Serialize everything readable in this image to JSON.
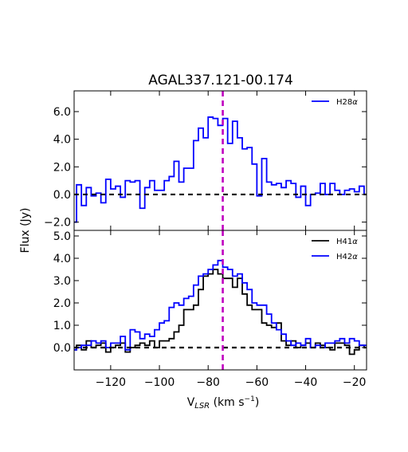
{
  "chart_data": {
    "type": "line",
    "title": "AGAL337.121-00.174",
    "xlabel": "V_LSR (km s^-1)",
    "xlabel_main": "V",
    "xlabel_sub": "LSR",
    "xlabel_unit_open": " (km s",
    "xlabel_unit_exp": "−1",
    "xlabel_unit_close": ")",
    "ylabel": "Flux (Jy)",
    "x_range": [
      -135,
      -15
    ],
    "x_ticks": [
      -120,
      -100,
      -80,
      -60,
      -40,
      -20
    ],
    "x_tick_labels": [
      "−120",
      "−100",
      "−80",
      "−60",
      "−40",
      "−20"
    ],
    "reference_velocity": -74,
    "reference_line_color": "#bf00bf",
    "panels": [
      {
        "id": "top",
        "y_range": [
          -2.6,
          7.5
        ],
        "y_ticks": [
          -2,
          0,
          2,
          4,
          6
        ],
        "y_tick_labels": [
          "−2.0",
          "0.0",
          "2.0",
          "4.0",
          "6.0"
        ],
        "baseline": 0,
        "legend_position": "top-right",
        "series": [
          {
            "name": "H28α",
            "legend": {
              "base": "H28",
              "greek": "α"
            },
            "color": "#0000ff",
            "x": [
              -135,
              -133,
              -131,
              -129,
              -127,
              -125,
              -123,
              -121,
              -119,
              -117,
              -115,
              -113,
              -111,
              -109,
              -107,
              -105,
              -103,
              -101,
              -99,
              -97,
              -95,
              -93,
              -91,
              -89,
              -87,
              -85,
              -83,
              -81,
              -79,
              -77,
              -75,
              -73,
              -71,
              -69,
              -67,
              -65,
              -63,
              -61,
              -59,
              -57,
              -55,
              -53,
              -51,
              -49,
              -47,
              -45,
              -43,
              -41,
              -39,
              -37,
              -35,
              -33,
              -31,
              -29,
              -27,
              -25,
              -23,
              -21,
              -19,
              -17,
              -15
            ],
            "values": [
              -2.0,
              0.7,
              -0.8,
              0.5,
              -0.1,
              0.1,
              -0.6,
              1.1,
              0.4,
              0.6,
              -0.2,
              1.0,
              0.9,
              1.0,
              -1.0,
              0.5,
              1.0,
              0.3,
              0.3,
              1.0,
              1.3,
              2.4,
              0.9,
              1.9,
              1.9,
              3.9,
              4.8,
              4.1,
              5.6,
              5.5,
              5.0,
              5.5,
              3.7,
              5.3,
              4.1,
              3.3,
              3.4,
              2.2,
              -0.1,
              2.6,
              0.9,
              0.7,
              0.8,
              0.5,
              1.0,
              0.8,
              -0.2,
              0.6,
              -0.8,
              0.0,
              0.1,
              0.8,
              0.0,
              0.8,
              0.3,
              0.0,
              0.3,
              0.4,
              0.2,
              0.6,
              0.0
            ]
          }
        ]
      },
      {
        "id": "bottom",
        "y_range": [
          -1.0,
          5.25
        ],
        "y_ticks": [
          0,
          1,
          2,
          3,
          4,
          5
        ],
        "y_tick_labels": [
          "0.0",
          "1.0",
          "2.0",
          "3.0",
          "4.0",
          "5.0"
        ],
        "baseline": 0,
        "legend_position": "top-right",
        "series": [
          {
            "name": "H41α",
            "legend": {
              "base": "H41",
              "greek": "α"
            },
            "color": "#000000",
            "x": [
              -135,
              -133,
              -131,
              -129,
              -127,
              -125,
              -123,
              -121,
              -119,
              -117,
              -115,
              -113,
              -111,
              -109,
              -107,
              -105,
              -103,
              -101,
              -99,
              -97,
              -95,
              -93,
              -91,
              -89,
              -87,
              -85,
              -83,
              -81,
              -79,
              -77,
              -75,
              -73,
              -71,
              -69,
              -67,
              -65,
              -63,
              -61,
              -59,
              -57,
              -55,
              -53,
              -51,
              -49,
              -47,
              -45,
              -43,
              -41,
              -39,
              -37,
              -35,
              -33,
              -31,
              -29,
              -27,
              -25,
              -23,
              -21,
              -19,
              -17,
              -15
            ],
            "values": [
              -0.1,
              0.1,
              -0.1,
              0.3,
              0.0,
              0.1,
              0.2,
              -0.2,
              0.0,
              0.1,
              0.2,
              -0.2,
              0.0,
              0.1,
              0.2,
              0.1,
              0.3,
              0.0,
              0.3,
              0.3,
              0.4,
              0.7,
              1.0,
              1.7,
              1.7,
              1.9,
              2.6,
              3.2,
              3.3,
              3.5,
              3.3,
              3.1,
              3.1,
              2.7,
              3.1,
              2.4,
              1.9,
              1.7,
              1.7,
              1.1,
              1.0,
              0.9,
              1.1,
              0.3,
              0.1,
              0.3,
              0.0,
              0.1,
              0.2,
              0.0,
              0.2,
              0.1,
              0.0,
              -0.1,
              0.2,
              0.2,
              0.1,
              -0.3,
              -0.1,
              0.1,
              0.0
            ]
          },
          {
            "name": "H42α",
            "legend": {
              "base": "H42",
              "greek": "α"
            },
            "color": "#0000ff",
            "x": [
              -135,
              -133,
              -131,
              -129,
              -127,
              -125,
              -123,
              -121,
              -119,
              -117,
              -115,
              -113,
              -111,
              -109,
              -107,
              -105,
              -103,
              -101,
              -99,
              -97,
              -95,
              -93,
              -91,
              -89,
              -87,
              -85,
              -83,
              -81,
              -79,
              -77,
              -75,
              -73,
              -71,
              -69,
              -67,
              -65,
              -63,
              -61,
              -59,
              -57,
              -55,
              -53,
              -51,
              -49,
              -47,
              -45,
              -43,
              -41,
              -39,
              -37,
              -35,
              -33,
              -31,
              -29,
              -27,
              -25,
              -23,
              -21,
              -19,
              -17,
              -15
            ],
            "values": [
              -0.1,
              0.0,
              0.1,
              0.1,
              0.3,
              0.2,
              0.3,
              0.0,
              0.2,
              0.2,
              0.5,
              -0.1,
              0.8,
              0.7,
              0.4,
              0.6,
              0.5,
              0.8,
              1.1,
              1.2,
              1.8,
              2.0,
              1.9,
              2.2,
              2.3,
              2.8,
              3.2,
              3.3,
              3.5,
              3.7,
              3.9,
              3.6,
              3.5,
              3.2,
              3.3,
              2.9,
              2.6,
              2.0,
              1.9,
              1.9,
              1.5,
              1.1,
              0.8,
              0.6,
              0.3,
              0.1,
              0.2,
              0.1,
              0.4,
              0.0,
              0.1,
              0.0,
              0.2,
              0.2,
              0.3,
              0.4,
              0.2,
              0.4,
              0.3,
              0.1,
              0.1
            ]
          }
        ]
      }
    ]
  }
}
